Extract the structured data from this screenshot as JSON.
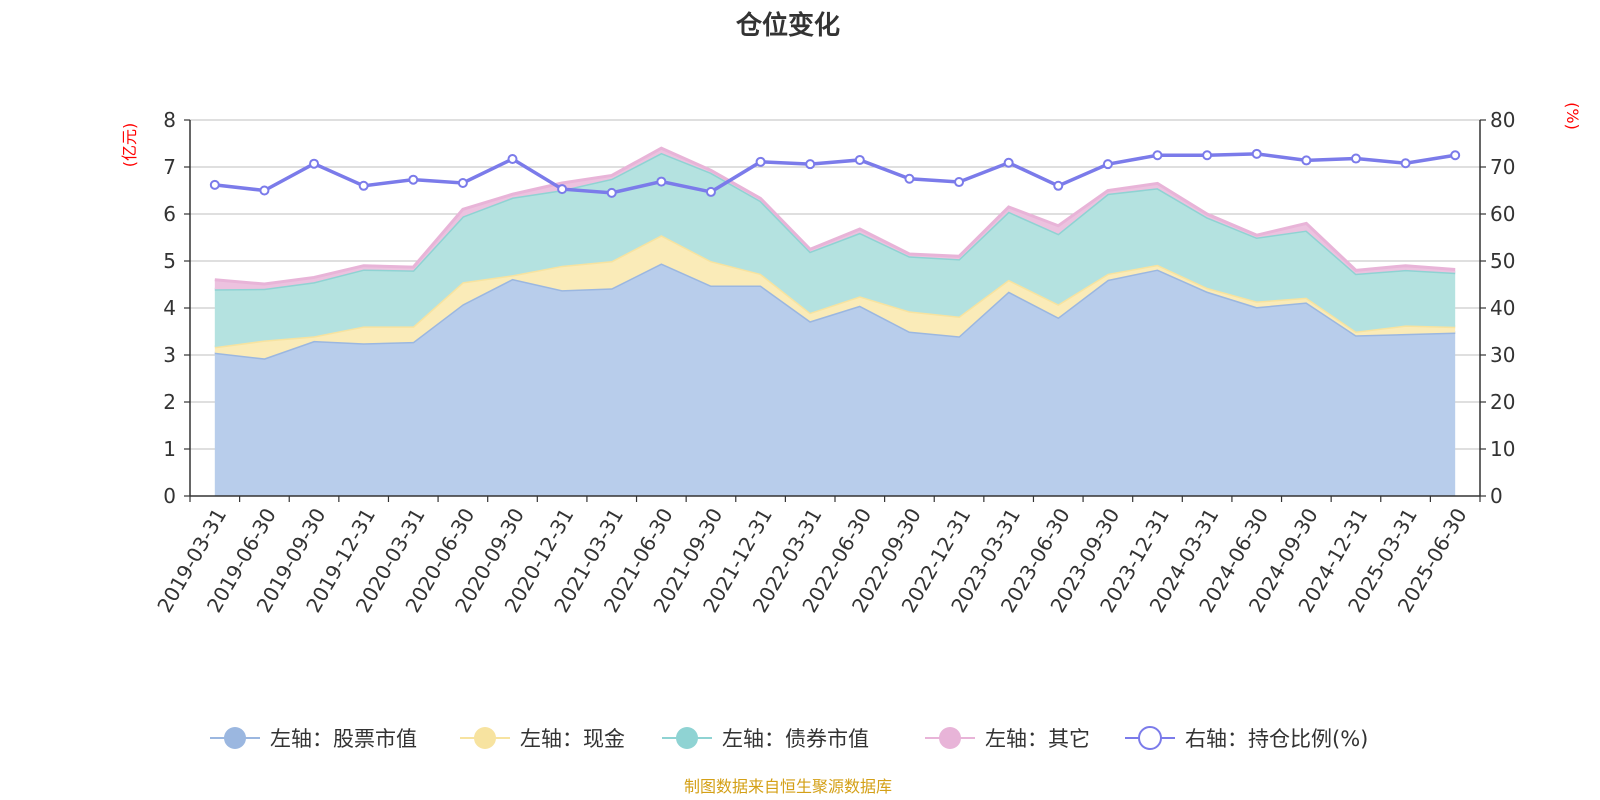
{
  "chart_data": {
    "type": "area",
    "title": "仓位变化",
    "left_unit": "(亿元)",
    "right_unit": "(%)",
    "source": "制图数据来自恒生聚源数据库",
    "ylim_left": [
      0,
      8
    ],
    "ylim_right": [
      0,
      80
    ],
    "left_ticks": [
      "0",
      "1",
      "2",
      "3",
      "4",
      "5",
      "6",
      "7",
      "8"
    ],
    "right_ticks": [
      "0",
      "10",
      "20",
      "30",
      "40",
      "50",
      "60",
      "70",
      "80"
    ],
    "grid": true,
    "legend_position": "bottom",
    "x": [
      "2019-03-31",
      "2019-06-30",
      "2019-09-30",
      "2019-12-31",
      "2020-03-31",
      "2020-06-30",
      "2020-09-30",
      "2020-12-31",
      "2021-03-31",
      "2021-06-30",
      "2021-09-30",
      "2021-12-31",
      "2022-03-31",
      "2022-06-30",
      "2022-09-30",
      "2022-12-31",
      "2023-03-31",
      "2023-06-30",
      "2023-09-30",
      "2023-12-31",
      "2024-03-31",
      "2024-06-30",
      "2024-09-30",
      "2024-12-31",
      "2025-03-31",
      "2025-06-30"
    ],
    "series": [
      {
        "name": "左轴：股票市值",
        "axis": "left",
        "stacked": true,
        "color": "#9bb7e0",
        "fill": "#b8cdeb",
        "values": [
          3.05,
          2.93,
          3.3,
          3.25,
          3.28,
          4.08,
          4.62,
          4.38,
          4.42,
          4.95,
          4.48,
          4.48,
          3.72,
          4.05,
          3.5,
          3.4,
          4.35,
          3.8,
          4.6,
          4.82,
          4.35,
          4.02,
          4.12,
          3.42,
          3.45,
          3.48
        ]
      },
      {
        "name": "左轴：现金",
        "axis": "left",
        "stacked": true,
        "color": "#f7e3a0",
        "fill": "#faebb8",
        "values": [
          0.12,
          0.38,
          0.1,
          0.36,
          0.33,
          0.47,
          0.08,
          0.52,
          0.58,
          0.6,
          0.52,
          0.25,
          0.18,
          0.2,
          0.43,
          0.42,
          0.25,
          0.28,
          0.13,
          0.1,
          0.08,
          0.12,
          0.1,
          0.08,
          0.18,
          0.12
        ]
      },
      {
        "name": "左轴：债券市值",
        "axis": "left",
        "stacked": true,
        "color": "#8fd3d3",
        "fill": "#b4e2e0",
        "values": [
          1.23,
          1.1,
          1.15,
          1.21,
          1.19,
          1.4,
          1.65,
          1.61,
          1.75,
          1.75,
          1.88,
          1.55,
          1.3,
          1.35,
          1.17,
          1.22,
          1.45,
          1.5,
          1.7,
          1.63,
          1.5,
          1.36,
          1.43,
          1.23,
          1.18,
          1.15
        ]
      },
      {
        "name": "左轴：其它",
        "axis": "left",
        "stacked": true,
        "color": "#e8b4d8",
        "fill": "#ecc2df",
        "values": [
          0.2,
          0.1,
          0.1,
          0.08,
          0.07,
          0.15,
          0.07,
          0.15,
          0.07,
          0.1,
          0.05,
          0.05,
          0.05,
          0.08,
          0.05,
          0.06,
          0.1,
          0.17,
          0.07,
          0.1,
          0.07,
          0.05,
          0.15,
          0.07,
          0.09,
          0.07
        ]
      },
      {
        "name": "右轴：持仓比例(%)",
        "axis": "right",
        "stacked": false,
        "color": "#7b7bea",
        "values": [
          66.2,
          65.0,
          70.7,
          66.0,
          67.3,
          66.6,
          71.7,
          65.3,
          64.5,
          66.9,
          64.7,
          71.1,
          70.6,
          71.5,
          67.5,
          66.8,
          70.9,
          66.0,
          70.6,
          72.5,
          72.5,
          72.8,
          71.4,
          71.8,
          70.8,
          72.5
        ]
      }
    ]
  }
}
